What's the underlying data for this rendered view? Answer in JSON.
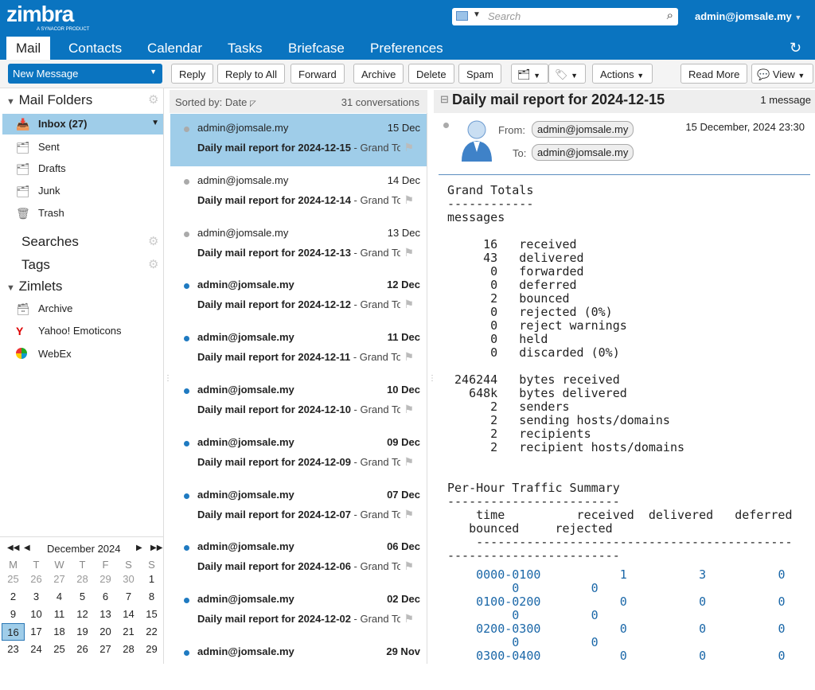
{
  "header": {
    "logo": "zimbra",
    "logo_tagline": "A SYNACOR PRODUCT",
    "search_placeholder": "Search",
    "user": "admin@jomsale.my"
  },
  "tabs": [
    {
      "label": "Mail",
      "active": true
    },
    {
      "label": "Contacts"
    },
    {
      "label": "Calendar"
    },
    {
      "label": "Tasks"
    },
    {
      "label": "Briefcase"
    },
    {
      "label": "Preferences"
    }
  ],
  "toolbar": {
    "new_message": "New Message",
    "reply": "Reply",
    "reply_all": "Reply to All",
    "forward": "Forward",
    "archive": "Archive",
    "delete": "Delete",
    "spam": "Spam",
    "actions": "Actions",
    "read_more": "Read More",
    "view": "View"
  },
  "sidebar": {
    "mail_folders": "Mail Folders",
    "folders": [
      {
        "label": "Inbox (27)",
        "icon": "inbox-icon"
      },
      {
        "label": "Sent",
        "icon": "sent-icon"
      },
      {
        "label": "Drafts",
        "icon": "drafts-icon"
      },
      {
        "label": "Junk",
        "icon": "junk-icon"
      },
      {
        "label": "Trash",
        "icon": "trash-icon"
      }
    ],
    "searches": "Searches",
    "tags": "Tags",
    "zimlets": "Zimlets",
    "zimlet_items": [
      {
        "label": "Archive"
      },
      {
        "label": "Yahoo! Emoticons"
      },
      {
        "label": "WebEx"
      }
    ]
  },
  "calendar": {
    "month": "December 2024",
    "weekdays": [
      "M",
      "T",
      "W",
      "T",
      "F",
      "S",
      "S"
    ],
    "weeks": [
      [
        "25",
        "26",
        "27",
        "28",
        "29",
        "30",
        "1"
      ],
      [
        "2",
        "3",
        "4",
        "5",
        "6",
        "7",
        "8"
      ],
      [
        "9",
        "10",
        "11",
        "12",
        "13",
        "14",
        "15"
      ],
      [
        "16",
        "17",
        "18",
        "19",
        "20",
        "21",
        "22"
      ],
      [
        "23",
        "24",
        "25",
        "26",
        "27",
        "28",
        "29"
      ]
    ],
    "today": "16"
  },
  "list": {
    "sorted_by": "Sorted by: Date",
    "count": "31 conversations",
    "items": [
      {
        "from": "admin@jomsale.my",
        "date": "15 Dec",
        "subject": "Daily mail report for 2024-12-15",
        "fragment": " - Grand Totals",
        "unread": false,
        "selected": true
      },
      {
        "from": "admin@jomsale.my",
        "date": "14 Dec",
        "subject": "Daily mail report for 2024-12-14",
        "fragment": " - Grand Totals",
        "unread": false
      },
      {
        "from": "admin@jomsale.my",
        "date": "13 Dec",
        "subject": "Daily mail report for 2024-12-13",
        "fragment": " - Grand Totals",
        "unread": false
      },
      {
        "from": "admin@jomsale.my",
        "date": "12 Dec",
        "subject": "Daily mail report for 2024-12-12",
        "fragment": " - Grand Totals",
        "unread": true
      },
      {
        "from": "admin@jomsale.my",
        "date": "11 Dec",
        "subject": "Daily mail report for 2024-12-11",
        "fragment": " - Grand Totals",
        "unread": true
      },
      {
        "from": "admin@jomsale.my",
        "date": "10 Dec",
        "subject": "Daily mail report for 2024-12-10",
        "fragment": " - Grand Totals",
        "unread": true
      },
      {
        "from": "admin@jomsale.my",
        "date": "09 Dec",
        "subject": "Daily mail report for 2024-12-09",
        "fragment": " - Grand Totals",
        "unread": true
      },
      {
        "from": "admin@jomsale.my",
        "date": "07 Dec",
        "subject": "Daily mail report for 2024-12-07",
        "fragment": " - Grand Totals",
        "unread": true
      },
      {
        "from": "admin@jomsale.my",
        "date": "06 Dec",
        "subject": "Daily mail report for 2024-12-06",
        "fragment": " - Grand Totals",
        "unread": true
      },
      {
        "from": "admin@jomsale.my",
        "date": "02 Dec",
        "subject": "Daily mail report for 2024-12-02",
        "fragment": " - Grand Totals",
        "unread": true
      },
      {
        "from": "admin@jomsale.my",
        "date": "29 Nov",
        "subject": "",
        "fragment": "",
        "unread": true
      }
    ]
  },
  "reading": {
    "title": "Daily mail report for 2024-12-15",
    "count": "1 message",
    "from_label": "From:",
    "to_label": "To:",
    "from": "admin@jomsale.my",
    "to": "admin@jomsale.my",
    "datetime": "15 December, 2024 23:30",
    "body": "Grand Totals\n------------\nmessages\n\n     16   received\n     43   delivered\n      0   forwarded\n      0   deferred\n      2   bounced\n      0   rejected (0%)\n      0   reject warnings\n      0   held\n      0   discarded (0%)\n\n 246244   bytes received\n   648k   bytes delivered\n      2   senders\n      2   sending hosts/domains\n      2   recipients\n      2   recipient hosts/domains\n\n\nPer-Hour Traffic Summary\n------------------------\n    time          received  delivered   deferred\n   bounced     rejected\n    --------------------------------------------\n------------------------",
    "traffic_rows": [
      {
        "time": "0000-0100",
        "received": "1",
        "delivered": "3",
        "deferred": "0",
        "bounced": "0",
        "rejected": "0"
      },
      {
        "time": "0100-0200",
        "received": "0",
        "delivered": "0",
        "deferred": "0",
        "bounced": "0",
        "rejected": "0"
      },
      {
        "time": "0200-0300",
        "received": "0",
        "delivered": "0",
        "deferred": "0",
        "bounced": "0",
        "rejected": "0"
      },
      {
        "time": "0300-0400",
        "received": "0",
        "delivered": "0",
        "deferred": "0"
      }
    ]
  }
}
